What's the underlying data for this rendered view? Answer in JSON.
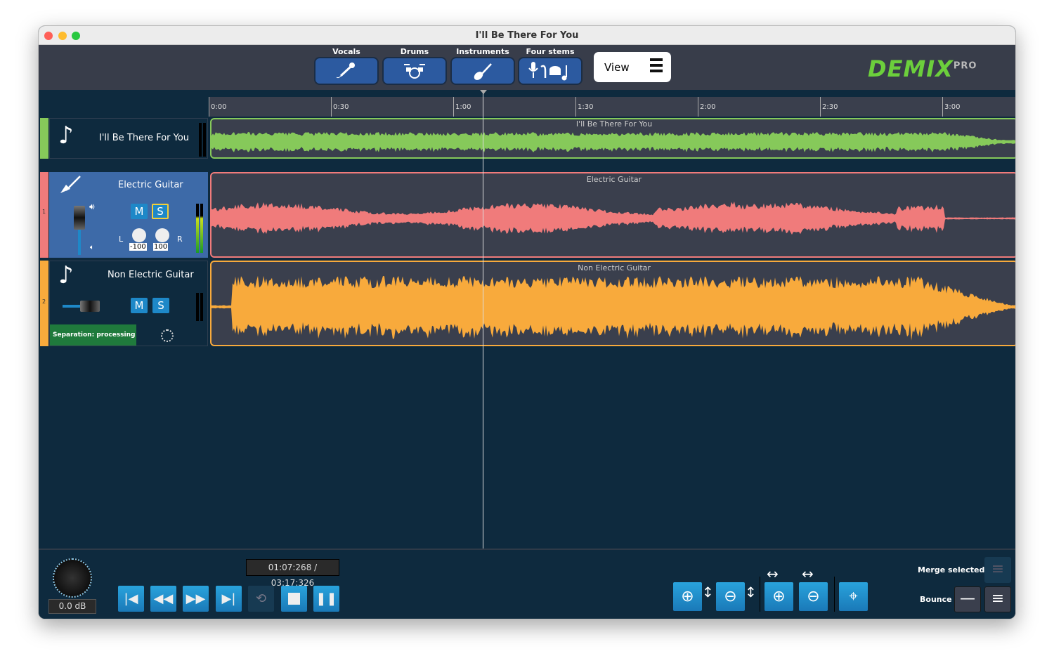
{
  "window": {
    "title": "I'll Be There For You"
  },
  "toolbar": {
    "separations": [
      {
        "label": "Vocals",
        "icon": "microphone-icon"
      },
      {
        "label": "Drums",
        "icon": "drum-kit-icon"
      },
      {
        "label": "Instruments",
        "icon": "guitar-icon"
      },
      {
        "label": "Four stems",
        "icon": "four-stems-icon"
      }
    ],
    "view_label": "View",
    "logo": "DEMIX",
    "logo_suffix": "PRO"
  },
  "ruler": {
    "ticks": [
      "0:00",
      "0:30",
      "1:00",
      "1:30",
      "2:00",
      "2:30",
      "3:00"
    ]
  },
  "tracks": [
    {
      "name": "I'll Be There For You",
      "clip": "I'll Be There For You",
      "color": "#86c95a",
      "index": ""
    },
    {
      "name": "Electric Guitar",
      "clip": "Electric Guitar",
      "color": "#f07b7b",
      "index": "1",
      "mute": "M",
      "solo": "S",
      "pan_l_label": "L",
      "pan_r_label": "R",
      "pan_l": "-100",
      "pan_r": "100",
      "solo_active": true
    },
    {
      "name": "Non Electric Guitar",
      "clip": "Non Electric Guitar",
      "color": "#f8aa3c",
      "index": "2",
      "mute": "M",
      "solo": "S",
      "status": "Separation: processing"
    }
  ],
  "transport": {
    "time": "01:07:268 / 03:17:326",
    "volume": "0.0 dB",
    "playhead_seconds": 67.268,
    "duration_seconds": 197.326
  },
  "actions": {
    "merge_label": "Merge selected",
    "bounce_label": "Bounce"
  }
}
